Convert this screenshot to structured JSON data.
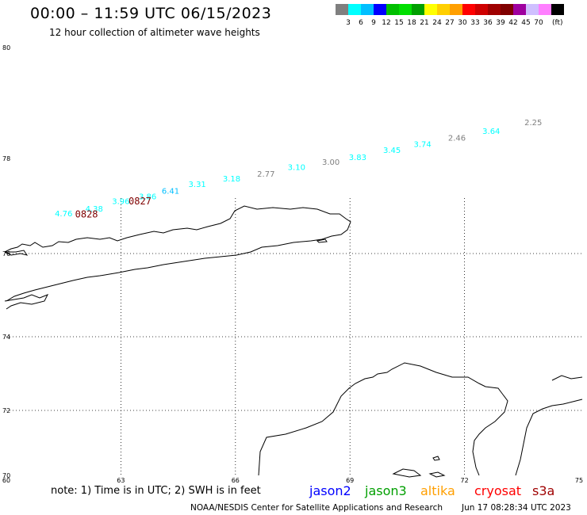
{
  "header": {
    "title": "00:00 – 11:59 UTC 06/15/2023",
    "subtitle": "12 hour collection of altimeter wave heights"
  },
  "colorbar": {
    "colors": [
      "#7f7f7f",
      "#00ffff",
      "#00bfff",
      "#0000ff",
      "#00bf00",
      "#00df00",
      "#009f00",
      "#ffff00",
      "#ffcf00",
      "#ff9f00",
      "#ff0000",
      "#cf0000",
      "#9f0000",
      "#7f0000",
      "#9f009f",
      "#cfbfff",
      "#ff7fff",
      "#000000"
    ],
    "labels": [
      "3",
      "6",
      "9",
      "12",
      "15",
      "18",
      "21",
      "24",
      "27",
      "30",
      "33",
      "36",
      "39",
      "42",
      "45",
      "70"
    ],
    "unit": "(ft)"
  },
  "map": {
    "lon_ticks": [
      "60",
      "63",
      "66",
      "69",
      "72",
      "75"
    ],
    "lat_ticks": [
      "80",
      "78",
      "76",
      "74",
      "72",
      "70"
    ]
  },
  "observations": [
    {
      "label": "2.25",
      "lon": 73.8,
      "lat": 78.6,
      "color": "#7f7f7f"
    },
    {
      "label": "3.64",
      "lon": 72.7,
      "lat": 78.44,
      "color": "#00ffff"
    },
    {
      "label": "2.46",
      "lon": 71.8,
      "lat": 78.32,
      "color": "#7f7f7f"
    },
    {
      "label": "3.74",
      "lon": 70.9,
      "lat": 78.21,
      "color": "#00ffff"
    },
    {
      "label": "3.45",
      "lon": 70.1,
      "lat": 78.1,
      "color": "#00ffff"
    },
    {
      "label": "3.83",
      "lon": 69.2,
      "lat": 77.97,
      "color": "#00ffff"
    },
    {
      "label": "3.00",
      "lon": 68.5,
      "lat": 77.87,
      "color": "#7f7f7f"
    },
    {
      "label": "3.10",
      "lon": 67.6,
      "lat": 77.76,
      "color": "#00ffff"
    },
    {
      "label": "2.77",
      "lon": 66.8,
      "lat": 77.62,
      "color": "#7f7f7f"
    },
    {
      "label": "3.18",
      "lon": 65.9,
      "lat": 77.52,
      "color": "#00ffff"
    },
    {
      "label": "3.31",
      "lon": 65.0,
      "lat": 77.4,
      "color": "#00ffff"
    },
    {
      "label": "6.41",
      "lon": 64.3,
      "lat": 77.26,
      "color": "#00bfff"
    },
    {
      "label": "3.86",
      "lon": 63.7,
      "lat": 77.14,
      "color": "#00ffff"
    },
    {
      "label": "3.96",
      "lon": 63.0,
      "lat": 77.04,
      "color": "#00ffff"
    },
    {
      "label": "4.38",
      "lon": 62.3,
      "lat": 76.88,
      "color": "#00ffff"
    },
    {
      "label": "4.76",
      "lon": 61.5,
      "lat": 76.78,
      "color": "#00ffff"
    }
  ],
  "time_labels": [
    {
      "label": "0827",
      "lon": 63.5,
      "lat": 77.03,
      "color": "#7f0000"
    },
    {
      "label": "0828",
      "lon": 62.1,
      "lat": 76.76,
      "color": "#7f0000"
    }
  ],
  "footer": {
    "note": "note:  1) Time is in UTC;  2) SWH is in feet",
    "satellites": [
      {
        "name": "jason2",
        "color": "#0000ff"
      },
      {
        "name": "jason3",
        "color": "#009f00"
      },
      {
        "name": "altika",
        "color": "#ff9f00"
      },
      {
        "name": "cryosat",
        "color": "#ff0000"
      },
      {
        "name": "s3a",
        "color": "#9f0000"
      }
    ],
    "credit": "NOAA/NESDIS Center for Satellite Applications and Research",
    "timestamp": "Jun 17 08:28:34 UTC 2023"
  }
}
